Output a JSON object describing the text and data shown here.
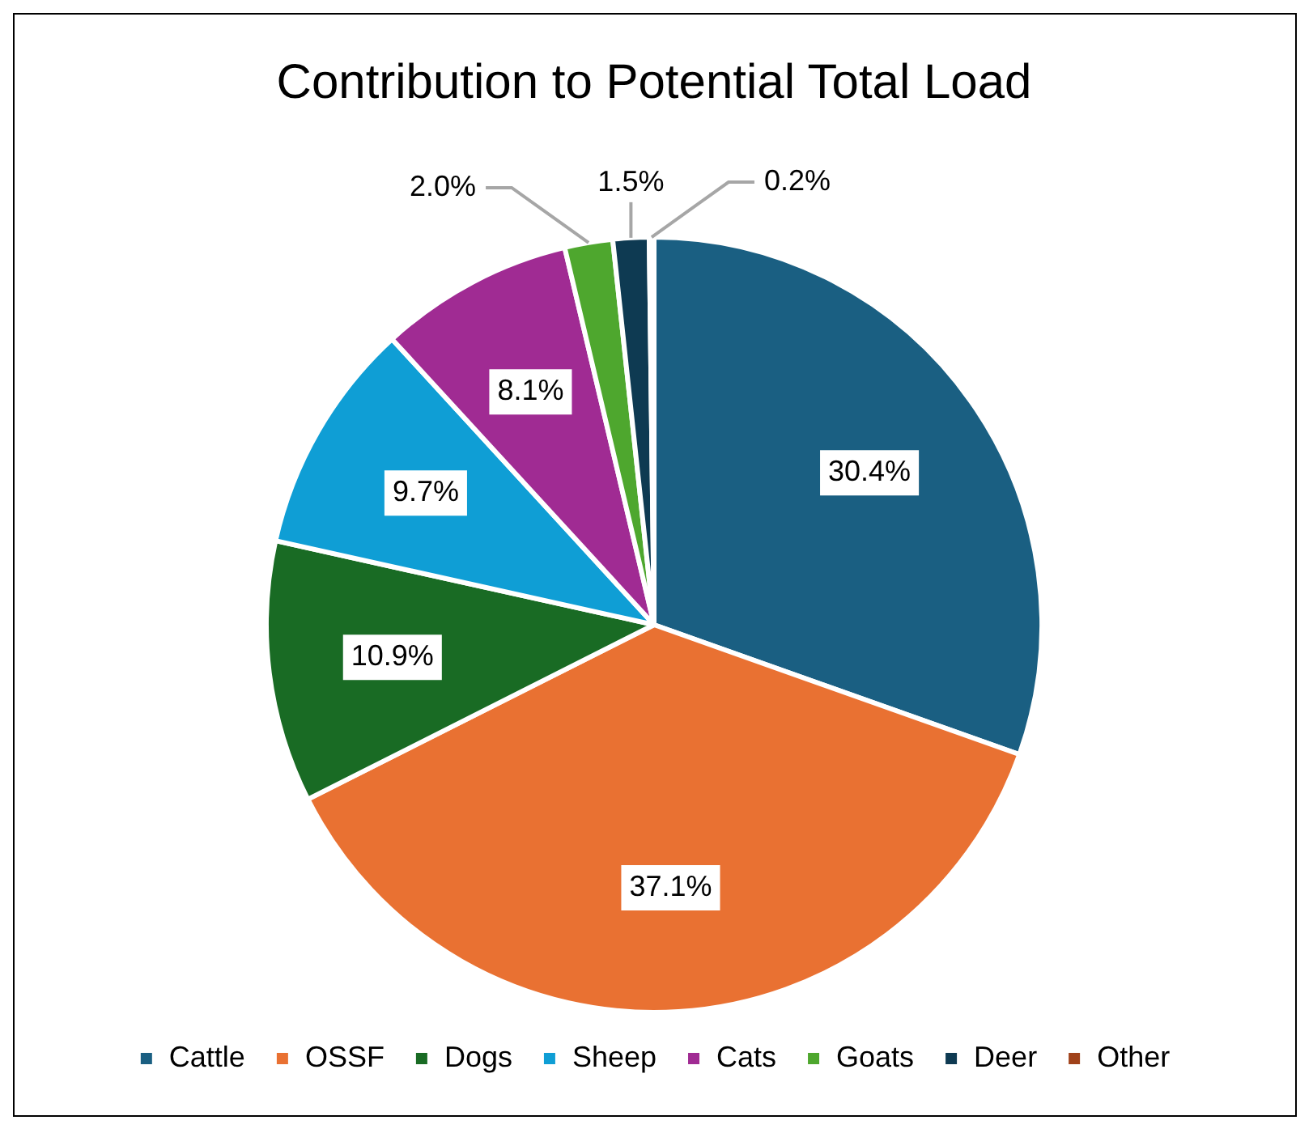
{
  "chart_data": {
    "type": "pie",
    "title": "Contribution to Potential Total Load",
    "categories": [
      "Cattle",
      "OSSF",
      "Dogs",
      "Sheep",
      "Cats",
      "Goats",
      "Deer",
      "Other"
    ],
    "values": [
      30.4,
      37.1,
      10.9,
      9.7,
      8.1,
      2.0,
      1.5,
      0.2
    ],
    "colors": [
      "#1a5f82",
      "#e97132",
      "#196b24",
      "#0f9ed5",
      "#a02b93",
      "#4ea72e",
      "#0e3a52",
      "#a0421a"
    ],
    "value_labels": [
      "30.4%",
      "37.1%",
      "10.9%",
      "9.7%",
      "8.1%",
      "2.0%",
      "1.5%",
      "0.2%"
    ],
    "legend": "bottom"
  }
}
